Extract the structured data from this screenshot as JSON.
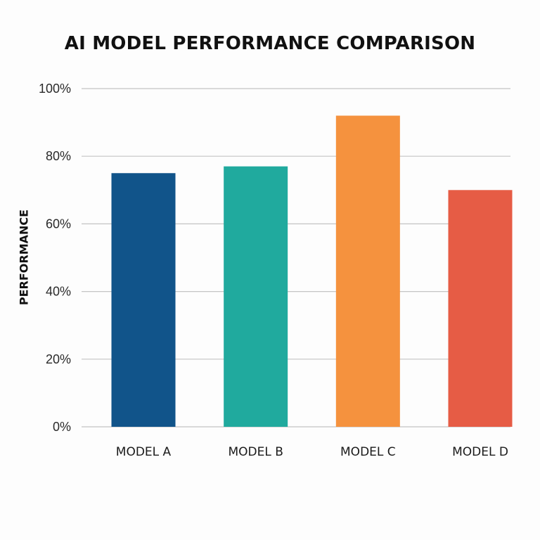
{
  "chart_data": {
    "type": "bar",
    "title": "AI MODEL PERFORMANCE COMPARISON",
    "xlabel": "",
    "ylabel": "PERFORMANCE",
    "categories": [
      "MODEL A",
      "MODEL B",
      "MODEL C",
      "MODEL D"
    ],
    "values": [
      75,
      77,
      92,
      70
    ],
    "colors": [
      "#11548a",
      "#20aa9e",
      "#f5923e",
      "#e65c45"
    ],
    "ylim": [
      0,
      100
    ],
    "yticks": [
      0,
      20,
      40,
      60,
      80,
      100
    ],
    "ytick_labels": [
      "0%",
      "20%",
      "40%",
      "60%",
      "80%",
      "100%"
    ],
    "grid": true,
    "legend": "none"
  }
}
